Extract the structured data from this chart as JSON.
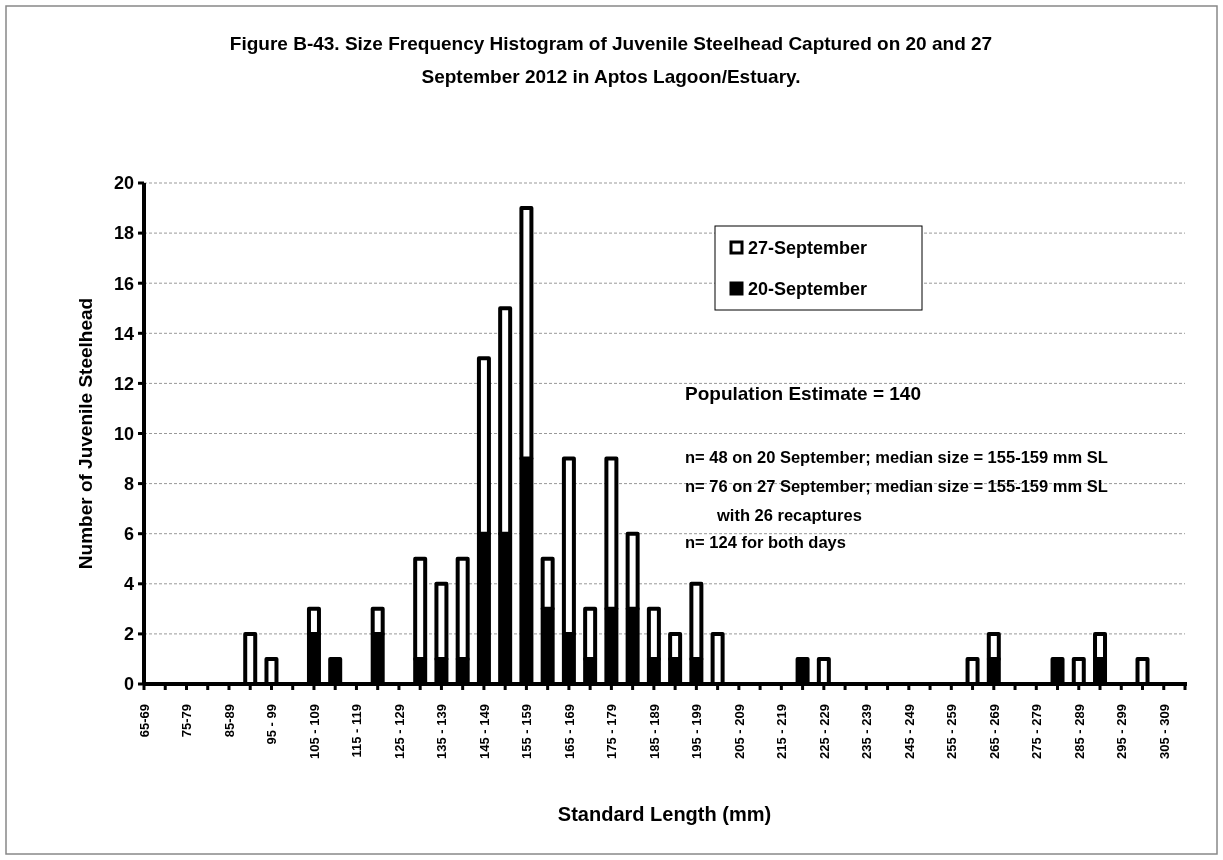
{
  "chart_data": {
    "type": "bar",
    "stacked": true,
    "title": "Figure B-43. Size Frequency Histogram of Juvenile Steelhead Captured on 20 and 27 September 2012 in Aptos Lagoon/Estuary.",
    "xlabel": "Standard Length (mm)",
    "ylabel": "Number of Juvenile Steelhead",
    "categories": [
      "65-69",
      null,
      "75-79",
      null,
      "85-89",
      null,
      "95 - 99",
      null,
      "105 - 109",
      null,
      "115 - 119",
      null,
      "125 - 129",
      null,
      "135 - 139",
      null,
      "145 - 149",
      null,
      "155 - 159",
      null,
      "165 - 169",
      null,
      "175 - 179",
      null,
      "185 - 189",
      null,
      "195 - 199",
      null,
      "205 - 209",
      null,
      "215 - 219",
      null,
      "225 - 229",
      null,
      "235 - 239",
      null,
      "245 - 249",
      null,
      "255 - 259",
      null,
      "265 - 269",
      null,
      "275 - 279",
      null,
      "285 - 289",
      null,
      "295 - 299",
      null,
      "305 - 309",
      null
    ],
    "series": [
      {
        "name": "20-September",
        "color": "#000000",
        "values": [
          0,
          0,
          0,
          0,
          0,
          0,
          0,
          0,
          2,
          1,
          0,
          2,
          0,
          1,
          1,
          1,
          6,
          6,
          9,
          3,
          2,
          1,
          3,
          3,
          1,
          1,
          1,
          0,
          0,
          0,
          0,
          1,
          0,
          0,
          0,
          0,
          0,
          0,
          0,
          0,
          1,
          0,
          0,
          1,
          0,
          1,
          0,
          0,
          0,
          0
        ]
      },
      {
        "name": "27-September",
        "color": "#ffffff",
        "values": [
          0,
          0,
          0,
          0,
          0,
          2,
          1,
          0,
          1,
          0,
          0,
          1,
          0,
          4,
          3,
          4,
          7,
          9,
          10,
          2,
          7,
          2,
          6,
          3,
          2,
          1,
          3,
          2,
          0,
          0,
          0,
          0,
          1,
          0,
          0,
          0,
          0,
          0,
          0,
          1,
          1,
          0,
          0,
          0,
          1,
          1,
          0,
          1,
          0,
          0
        ]
      }
    ],
    "ylim": [
      0,
      20
    ],
    "yticks": [
      0,
      2,
      4,
      6,
      8,
      10,
      12,
      14,
      16,
      18,
      20
    ],
    "grid": "y",
    "legend": "top right",
    "annotations": [
      "Population Estimate = 140",
      "n= 48 on 20 September; median size = 155-159 mm SL",
      "n= 76 on 27 September; median size = 155-159 mm SL",
      "with 26 recaptures",
      "n= 124 for both days"
    ]
  }
}
